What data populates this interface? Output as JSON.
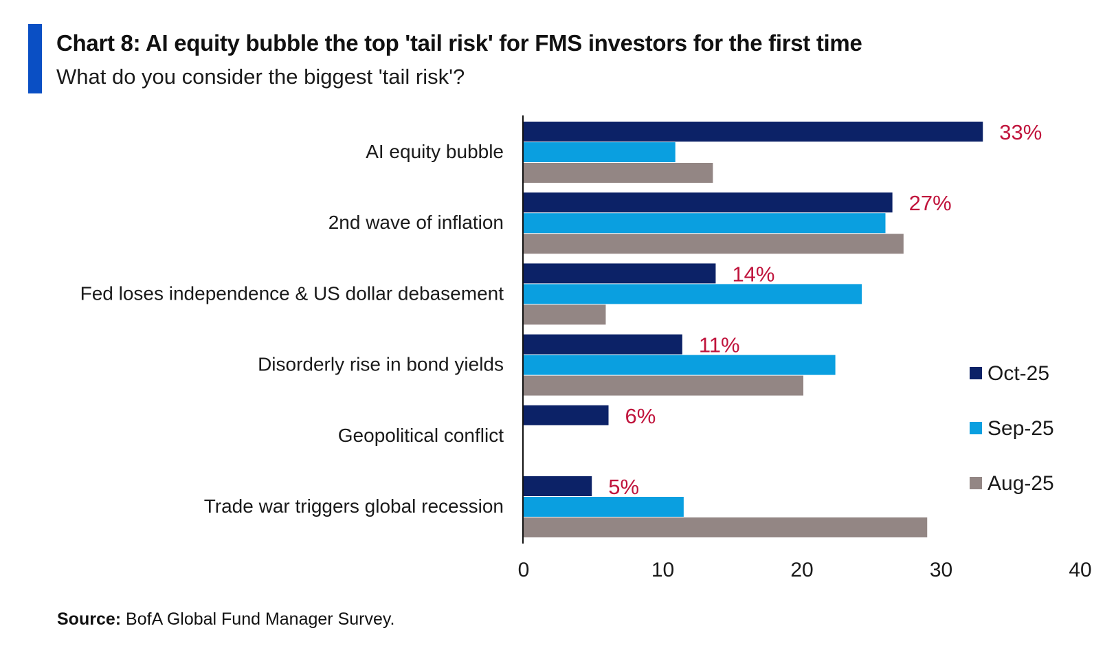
{
  "header": {
    "title": "Chart 8: AI equity bubble the top 'tail risk' for FMS investors for the first time",
    "subtitle": "What do you consider the biggest 'tail risk'?"
  },
  "footer": {
    "source_label": "Source:",
    "source_text": "BofA Global Fund Manager Survey."
  },
  "colors": {
    "accent": "#0a4fc4",
    "oct": "#0c2267",
    "sep": "#0a9fe0",
    "aug": "#938684",
    "value_label": "#c0143c"
  },
  "chart_data": {
    "type": "bar",
    "orientation": "horizontal",
    "title": "Chart 8: AI equity bubble the top 'tail risk' for FMS investors for the first time",
    "subtitle": "What do you consider the biggest 'tail risk'?",
    "categories": [
      "AI equity bubble",
      "2nd wave of inflation",
      "Fed loses independence & US dollar debasement",
      "Disorderly rise in bond yields",
      "Geopolitical conflict",
      "Trade war triggers global recession"
    ],
    "series": [
      {
        "name": "Oct-25",
        "values": [
          33,
          26.5,
          13.8,
          11.4,
          6.1,
          4.9
        ]
      },
      {
        "name": "Sep-25",
        "values": [
          10.9,
          26.0,
          24.3,
          22.4,
          0,
          11.5
        ]
      },
      {
        "name": "Aug-25",
        "values": [
          13.6,
          27.3,
          5.9,
          20.1,
          0,
          29.0
        ]
      }
    ],
    "data_labels": [
      "33%",
      "27%",
      "14%",
      "11%",
      "6%",
      "5%"
    ],
    "xlim": [
      0,
      40
    ],
    "xticks": [
      "0",
      "10",
      "20",
      "30",
      "40"
    ],
    "xlabel": "",
    "ylabel": "",
    "grid": false,
    "legend_position": "right"
  }
}
